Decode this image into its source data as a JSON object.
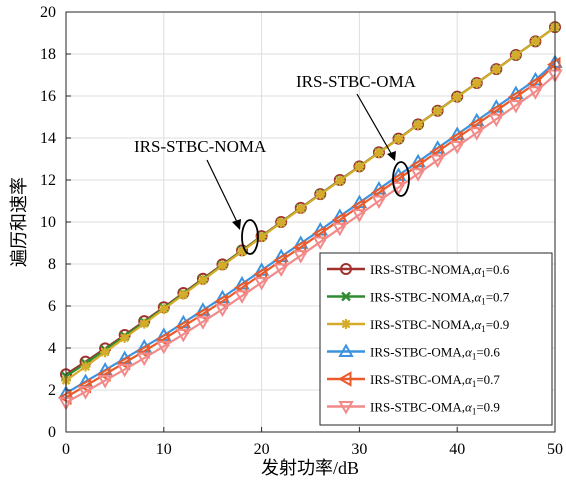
{
  "chart_data": {
    "type": "line",
    "xlabel": "发射功率/dB",
    "ylabel": "遍历和速率",
    "xlim": [
      0,
      50
    ],
    "ylim": [
      0,
      20
    ],
    "xticks": [
      0,
      10,
      20,
      30,
      40,
      50
    ],
    "yticks": [
      0,
      2,
      4,
      6,
      8,
      10,
      12,
      14,
      16,
      18,
      20
    ],
    "grid": true,
    "legend": "bottom-right",
    "x": [
      0,
      2,
      4,
      6,
      8,
      10,
      12,
      14,
      16,
      18,
      20,
      22,
      24,
      26,
      28,
      30,
      32,
      34,
      36,
      38,
      40,
      42,
      44,
      46,
      48,
      50
    ],
    "series": [
      {
        "name_prefix": "IRS-STBC-NOMA,",
        "alpha": "α",
        "sub": "1",
        "suffix": "=0.6",
        "color": "#A0302C",
        "marker": "circle",
        "values": [
          2.75,
          3.35,
          3.98,
          4.62,
          5.28,
          5.94,
          6.62,
          7.3,
          7.98,
          8.65,
          9.33,
          10.0,
          10.67,
          11.33,
          12.0,
          12.65,
          13.32,
          13.97,
          14.65,
          15.3,
          15.97,
          16.62,
          17.28,
          17.95,
          18.6,
          19.28
        ]
      },
      {
        "name_prefix": "IRS-STBC-NOMA,",
        "alpha": "α",
        "sub": "1",
        "suffix": "=0.7",
        "color": "#2E8B2E",
        "marker": "x",
        "values": [
          2.65,
          3.27,
          3.92,
          4.57,
          5.23,
          5.9,
          6.58,
          7.27,
          7.95,
          8.63,
          9.31,
          9.98,
          10.65,
          11.32,
          11.98,
          12.64,
          13.31,
          13.96,
          14.64,
          15.29,
          15.96,
          16.61,
          17.27,
          17.94,
          18.6,
          19.27
        ]
      },
      {
        "name_prefix": "IRS-STBC-NOMA,",
        "alpha": "α",
        "sub": "1",
        "suffix": "=0.9",
        "color": "#D4AC2A",
        "marker": "star",
        "values": [
          2.45,
          3.12,
          3.8,
          4.48,
          5.16,
          5.85,
          6.54,
          7.23,
          7.92,
          8.6,
          9.29,
          9.97,
          10.64,
          11.31,
          11.97,
          12.63,
          13.3,
          13.95,
          14.63,
          15.29,
          15.95,
          16.61,
          17.27,
          17.94,
          18.6,
          19.27
        ]
      },
      {
        "name_prefix": "IRS-STBC-OMA,",
        "alpha": "α",
        "sub": "1",
        "suffix": "=0.6",
        "color": "#3B93E0",
        "marker": "triangle-up",
        "values": [
          1.85,
          2.4,
          2.95,
          3.5,
          4.05,
          4.6,
          5.2,
          5.8,
          6.4,
          7.05,
          7.7,
          8.35,
          8.98,
          9.62,
          10.27,
          10.92,
          11.57,
          12.22,
          12.87,
          13.52,
          14.17,
          14.82,
          15.47,
          16.12,
          16.77,
          17.6
        ]
      },
      {
        "name_prefix": "IRS-STBC-OMA,",
        "alpha": "α",
        "sub": "1",
        "suffix": "=0.7",
        "color": "#EA5A2A",
        "marker": "triangle-left",
        "values": [
          1.65,
          2.2,
          2.75,
          3.3,
          3.85,
          4.42,
          5.02,
          5.62,
          6.22,
          6.87,
          7.52,
          8.17,
          8.8,
          9.45,
          10.1,
          10.75,
          11.4,
          12.05,
          12.7,
          13.35,
          14.0,
          14.65,
          15.3,
          15.95,
          16.6,
          17.5
        ]
      },
      {
        "name_prefix": "IRS-STBC-OMA,",
        "alpha": "α",
        "sub": "1",
        "suffix": "=0.9",
        "color": "#F28A8A",
        "marker": "triangle-down",
        "values": [
          1.4,
          1.92,
          2.45,
          2.98,
          3.52,
          4.08,
          4.65,
          5.25,
          5.85,
          6.48,
          7.12,
          7.76,
          8.4,
          9.05,
          9.7,
          10.35,
          11.0,
          11.65,
          12.3,
          12.95,
          13.6,
          14.25,
          14.9,
          15.55,
          16.2,
          17.0
        ]
      }
    ],
    "annotations": [
      {
        "text": "IRS-STBC-NOMA"
      },
      {
        "text": "IRS-STBC-OMA"
      }
    ]
  }
}
